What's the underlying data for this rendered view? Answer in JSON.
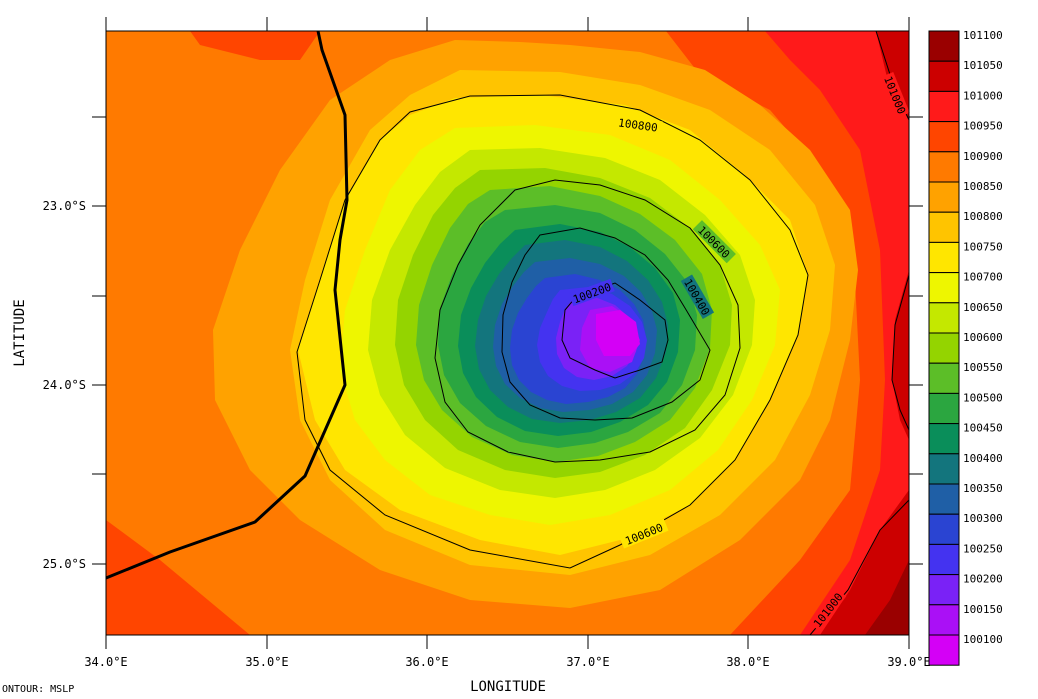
{
  "map": {
    "xlabel": "LONGITUDE",
    "ylabel": "LATITUDE",
    "footer": "ONTOUR: MSLP",
    "x_ticks": [
      "34.0°E",
      "35.0°E",
      "36.0°E",
      "37.0°E",
      "38.0°E",
      "39.0°E"
    ],
    "y_ticks": [
      "23.0°S",
      "24.0°S",
      "25.0°S"
    ],
    "contour_labels": [
      "100800",
      "100600",
      "100400",
      "100200",
      "100600",
      "101000",
      "101000"
    ],
    "colorbar": {
      "levels": [
        "101100",
        "101050",
        "101000",
        "100950",
        "100900",
        "100850",
        "100800",
        "100750",
        "100700",
        "100650",
        "100600",
        "100550",
        "100500",
        "100450",
        "100400",
        "100350",
        "100300",
        "100250",
        "100200",
        "100150",
        "100100"
      ],
      "colors": [
        "#9a0000",
        "#cc0000",
        "#ff1a1a",
        "#ff4500",
        "#ff7a00",
        "#ffa200",
        "#ffc400",
        "#ffe600",
        "#eef600",
        "#c4e800",
        "#94d400",
        "#5cbe28",
        "#2ba640",
        "#0a8e5a",
        "#13757d",
        "#1f5fa6",
        "#2a44d2",
        "#4433f0",
        "#7a22f6",
        "#aa10f6",
        "#d400f6"
      ]
    },
    "low_center": {
      "lon": 37.15,
      "lat": -23.7,
      "pressure": 100100
    },
    "coastline_color": "#000000"
  }
}
